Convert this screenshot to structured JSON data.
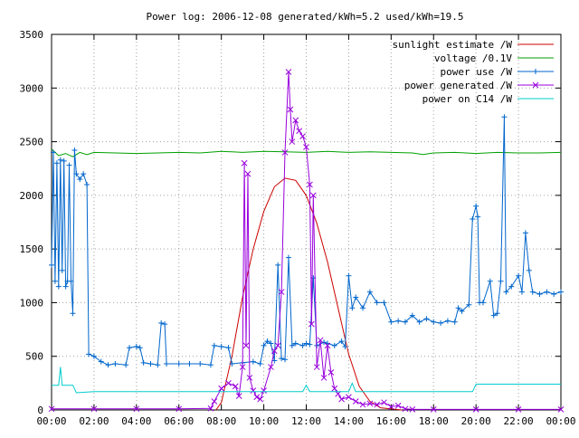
{
  "chart_data": {
    "type": "line",
    "title": "Power log: 2006-12-08 generated/kWh=5.2 used/kWh=19.5",
    "xlabel": "",
    "ylabel": "",
    "xlim": [
      "00:00",
      "24:00"
    ],
    "ylim": [
      0,
      3500
    ],
    "grid": true,
    "legend_position": "top-right",
    "x_ticks": [
      "00:00",
      "02:00",
      "04:00",
      "06:00",
      "08:00",
      "10:00",
      "12:00",
      "14:00",
      "16:00",
      "18:00",
      "20:00",
      "22:00",
      "00:00"
    ],
    "y_ticks": [
      "0",
      "500",
      "1000",
      "1500",
      "2000",
      "2500",
      "3000",
      "3500"
    ],
    "series": [
      {
        "name": "sunlight estimate /W",
        "color": "#cc0000",
        "marker": "none",
        "points": [
          [
            "07:45",
            0
          ],
          [
            "08:00",
            70
          ],
          [
            "08:30",
            500
          ],
          [
            "09:00",
            1050
          ],
          [
            "09:30",
            1500
          ],
          [
            "10:00",
            1850
          ],
          [
            "10:30",
            2080
          ],
          [
            "11:00",
            2160
          ],
          [
            "11:30",
            2140
          ],
          [
            "12:00",
            2000
          ],
          [
            "12:30",
            1740
          ],
          [
            "13:00",
            1380
          ],
          [
            "13:30",
            950
          ],
          [
            "14:00",
            520
          ],
          [
            "14:30",
            220
          ],
          [
            "15:00",
            80
          ],
          [
            "15:30",
            20
          ],
          [
            "16:30",
            0
          ]
        ]
      },
      {
        "name": "voltage /0.1V",
        "color": "#00a000",
        "marker": "none",
        "points": [
          [
            "00:00",
            2430
          ],
          [
            "00:10",
            2400
          ],
          [
            "00:20",
            2370
          ],
          [
            "00:40",
            2390
          ],
          [
            "01:00",
            2360
          ],
          [
            "01:20",
            2400
          ],
          [
            "01:40",
            2380
          ],
          [
            "02:00",
            2400
          ],
          [
            "03:00",
            2395
          ],
          [
            "04:00",
            2390
          ],
          [
            "05:00",
            2395
          ],
          [
            "06:00",
            2400
          ],
          [
            "07:00",
            2395
          ],
          [
            "08:00",
            2410
          ],
          [
            "09:00",
            2400
          ],
          [
            "10:00",
            2410
          ],
          [
            "11:00",
            2405
          ],
          [
            "12:00",
            2400
          ],
          [
            "13:00",
            2410
          ],
          [
            "14:00",
            2400
          ],
          [
            "15:00",
            2405
          ],
          [
            "16:00",
            2400
          ],
          [
            "17:00",
            2395
          ],
          [
            "17:30",
            2380
          ],
          [
            "18:00",
            2395
          ],
          [
            "19:00",
            2400
          ],
          [
            "20:00",
            2390
          ],
          [
            "21:00",
            2400
          ],
          [
            "22:00",
            2395
          ],
          [
            "23:00",
            2395
          ],
          [
            "24:00",
            2400
          ]
        ]
      },
      {
        "name": "power use /W",
        "color": "#0066cc",
        "marker": "plus",
        "points": [
          [
            "00:00",
            1350
          ],
          [
            "00:05",
            2400
          ],
          [
            "00:10",
            1200
          ],
          [
            "00:15",
            2300
          ],
          [
            "00:20",
            1150
          ],
          [
            "00:25",
            2330
          ],
          [
            "00:30",
            1300
          ],
          [
            "00:35",
            2320
          ],
          [
            "00:40",
            1150
          ],
          [
            "00:45",
            1200
          ],
          [
            "00:50",
            2280
          ],
          [
            "00:55",
            1200
          ],
          [
            "01:00",
            900
          ],
          [
            "01:05",
            2420
          ],
          [
            "01:10",
            2200
          ],
          [
            "01:20",
            2150
          ],
          [
            "01:30",
            2200
          ],
          [
            "01:40",
            2100
          ],
          [
            "01:45",
            520
          ],
          [
            "02:00",
            500
          ],
          [
            "02:20",
            450
          ],
          [
            "02:40",
            420
          ],
          [
            "03:00",
            430
          ],
          [
            "03:30",
            420
          ],
          [
            "03:40",
            580
          ],
          [
            "04:00",
            590
          ],
          [
            "04:10",
            580
          ],
          [
            "04:20",
            440
          ],
          [
            "04:40",
            430
          ],
          [
            "05:00",
            420
          ],
          [
            "05:10",
            810
          ],
          [
            "05:20",
            800
          ],
          [
            "05:25",
            430
          ],
          [
            "06:00",
            430
          ],
          [
            "06:30",
            430
          ],
          [
            "07:00",
            430
          ],
          [
            "07:30",
            420
          ],
          [
            "07:40",
            600
          ],
          [
            "08:00",
            590
          ],
          [
            "08:20",
            580
          ],
          [
            "08:30",
            430
          ],
          [
            "09:00",
            440
          ],
          [
            "09:30",
            450
          ],
          [
            "09:50",
            430
          ],
          [
            "10:00",
            600
          ],
          [
            "10:10",
            640
          ],
          [
            "10:20",
            620
          ],
          [
            "10:30",
            460
          ],
          [
            "10:40",
            1350
          ],
          [
            "10:50",
            480
          ],
          [
            "11:00",
            470
          ],
          [
            "11:10",
            1420
          ],
          [
            "11:20",
            600
          ],
          [
            "11:30",
            620
          ],
          [
            "11:50",
            600
          ],
          [
            "12:00",
            620
          ],
          [
            "12:10",
            610
          ],
          [
            "12:20",
            1230
          ],
          [
            "12:30",
            600
          ],
          [
            "12:50",
            630
          ],
          [
            "13:00",
            620
          ],
          [
            "13:20",
            600
          ],
          [
            "13:40",
            640
          ],
          [
            "13:50",
            590
          ],
          [
            "14:00",
            1250
          ],
          [
            "14:10",
            950
          ],
          [
            "14:20",
            1050
          ],
          [
            "14:40",
            950
          ],
          [
            "15:00",
            1100
          ],
          [
            "15:20",
            1000
          ],
          [
            "15:40",
            1000
          ],
          [
            "16:00",
            820
          ],
          [
            "16:20",
            830
          ],
          [
            "16:40",
            820
          ],
          [
            "17:00",
            880
          ],
          [
            "17:20",
            820
          ],
          [
            "17:40",
            850
          ],
          [
            "18:00",
            820
          ],
          [
            "18:20",
            810
          ],
          [
            "18:40",
            830
          ],
          [
            "19:00",
            820
          ],
          [
            "19:10",
            950
          ],
          [
            "19:20",
            920
          ],
          [
            "19:40",
            980
          ],
          [
            "19:50",
            1780
          ],
          [
            "20:00",
            1900
          ],
          [
            "20:05",
            1800
          ],
          [
            "20:10",
            1000
          ],
          [
            "20:20",
            1000
          ],
          [
            "20:40",
            1200
          ],
          [
            "20:50",
            880
          ],
          [
            "21:00",
            900
          ],
          [
            "21:10",
            1200
          ],
          [
            "21:20",
            2730
          ],
          [
            "21:25",
            1100
          ],
          [
            "21:40",
            1150
          ],
          [
            "22:00",
            1250
          ],
          [
            "22:10",
            1100
          ],
          [
            "22:20",
            1650
          ],
          [
            "22:30",
            1300
          ],
          [
            "22:40",
            1100
          ],
          [
            "23:00",
            1080
          ],
          [
            "23:20",
            1100
          ],
          [
            "23:40",
            1080
          ],
          [
            "24:00",
            1100
          ]
        ]
      },
      {
        "name": "power generated /W",
        "color": "#9900dd",
        "marker": "cross",
        "points": [
          [
            "00:00",
            10
          ],
          [
            "02:00",
            10
          ],
          [
            "04:00",
            10
          ],
          [
            "06:00",
            10
          ],
          [
            "07:30",
            15
          ],
          [
            "07:40",
            80
          ],
          [
            "08:00",
            200
          ],
          [
            "08:20",
            250
          ],
          [
            "08:40",
            220
          ],
          [
            "08:50",
            130
          ],
          [
            "09:00",
            400
          ],
          [
            "09:05",
            2300
          ],
          [
            "09:10",
            600
          ],
          [
            "09:15",
            2200
          ],
          [
            "09:20",
            300
          ],
          [
            "09:30",
            180
          ],
          [
            "09:40",
            120
          ],
          [
            "09:50",
            100
          ],
          [
            "10:00",
            180
          ],
          [
            "10:20",
            400
          ],
          [
            "10:30",
            550
          ],
          [
            "10:40",
            600
          ],
          [
            "10:50",
            1100
          ],
          [
            "11:00",
            2400
          ],
          [
            "11:10",
            3150
          ],
          [
            "11:15",
            2800
          ],
          [
            "11:20",
            2500
          ],
          [
            "11:30",
            2700
          ],
          [
            "11:40",
            2600
          ],
          [
            "11:50",
            2550
          ],
          [
            "12:00",
            2450
          ],
          [
            "12:10",
            2100
          ],
          [
            "12:15",
            800
          ],
          [
            "12:20",
            2000
          ],
          [
            "12:30",
            400
          ],
          [
            "12:40",
            650
          ],
          [
            "12:50",
            300
          ],
          [
            "13:00",
            600
          ],
          [
            "13:10",
            350
          ],
          [
            "13:20",
            200
          ],
          [
            "13:30",
            150
          ],
          [
            "13:40",
            100
          ],
          [
            "14:00",
            120
          ],
          [
            "14:20",
            80
          ],
          [
            "14:40",
            50
          ],
          [
            "15:00",
            60
          ],
          [
            "15:20",
            50
          ],
          [
            "15:40",
            70
          ],
          [
            "16:00",
            30
          ],
          [
            "16:20",
            40
          ],
          [
            "16:40",
            10
          ],
          [
            "17:00",
            5
          ],
          [
            "18:00",
            5
          ],
          [
            "20:00",
            5
          ],
          [
            "22:00",
            5
          ],
          [
            "24:00",
            5
          ]
        ]
      },
      {
        "name": "power on C14 /W",
        "color": "#00cccc",
        "marker": "none",
        "points": [
          [
            "00:00",
            230
          ],
          [
            "00:20",
            230
          ],
          [
            "00:25",
            400
          ],
          [
            "00:30",
            230
          ],
          [
            "01:00",
            230
          ],
          [
            "01:10",
            160
          ],
          [
            "02:00",
            170
          ],
          [
            "04:00",
            170
          ],
          [
            "06:00",
            170
          ],
          [
            "08:00",
            170
          ],
          [
            "10:00",
            170
          ],
          [
            "11:50",
            170
          ],
          [
            "12:00",
            230
          ],
          [
            "12:10",
            170
          ],
          [
            "13:00",
            170
          ],
          [
            "14:00",
            170
          ],
          [
            "14:10",
            250
          ],
          [
            "14:20",
            170
          ],
          [
            "16:00",
            170
          ],
          [
            "18:00",
            170
          ],
          [
            "19:50",
            170
          ],
          [
            "20:00",
            240
          ],
          [
            "22:00",
            240
          ],
          [
            "24:00",
            240
          ]
        ]
      }
    ]
  }
}
